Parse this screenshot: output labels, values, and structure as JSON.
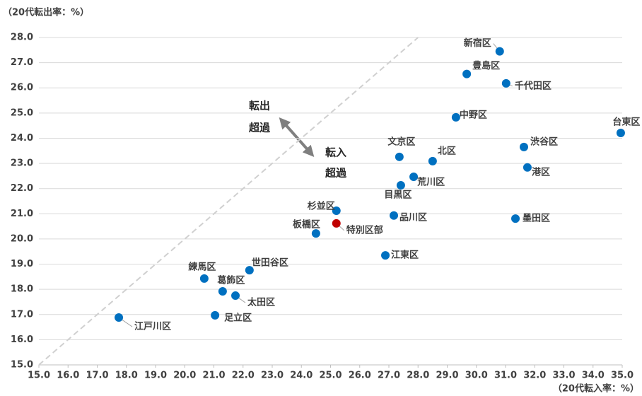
{
  "chart_data": {
    "type": "scatter",
    "y_label": "（20代転出率：%）",
    "x_label": "（20代転入率：%）",
    "annotations": [
      "転出",
      "超過",
      "転入",
      "超過"
    ],
    "labels": [
      "新宿区",
      "豊島区",
      "千代田区",
      "中野区",
      "台東区",
      "渋谷区",
      "文京区",
      "北区",
      "港区",
      "荒川区",
      "目黒区",
      "杉並区",
      "品川区",
      "墨田区",
      "特別区部",
      "板橋区",
      "江東区",
      "世田谷区",
      "練馬区",
      "葛飾区",
      "太田区",
      "足立区",
      "江戸川区"
    ],
    "x": [
      30.8,
      29.67,
      31.02,
      29.3,
      34.95,
      31.63,
      27.36,
      28.5,
      31.75,
      27.85,
      27.41,
      25.2,
      27.17,
      31.34,
      25.2,
      24.5,
      26.88,
      22.22,
      20.67,
      21.3,
      21.74,
      21.04,
      17.74
    ],
    "y": [
      27.45,
      26.55,
      26.18,
      24.83,
      24.21,
      23.65,
      23.26,
      23.09,
      22.84,
      22.47,
      22.13,
      21.12,
      20.93,
      20.81,
      20.62,
      20.22,
      19.35,
      18.76,
      18.43,
      17.92,
      17.75,
      16.97,
      16.88
    ],
    "colors": [
      "#0070c0",
      "#0070c0",
      "#0070c0",
      "#0070c0",
      "#0070c0",
      "#0070c0",
      "#0070c0",
      "#0070c0",
      "#0070c0",
      "#0070c0",
      "#0070c0",
      "#0070c0",
      "#0070c0",
      "#0070c0",
      "#c00000",
      "#0070c0",
      "#0070c0",
      "#0070c0",
      "#0070c0",
      "#0070c0",
      "#0070c0",
      "#0070c0",
      "#0070c0"
    ],
    "xlim": [
      15,
      35
    ],
    "ylim": [
      15,
      28
    ],
    "xticks": [
      {
        "value": 15,
        "label": "15.0"
      },
      {
        "value": 16,
        "label": "16.0"
      },
      {
        "value": 17,
        "label": "17.0"
      },
      {
        "value": 18,
        "label": "18.0"
      },
      {
        "value": 19,
        "label": "19.0"
      },
      {
        "value": 20,
        "label": "20.0"
      },
      {
        "value": 21,
        "label": "21.0"
      },
      {
        "value": 22,
        "label": "22.0"
      },
      {
        "value": 23,
        "label": "23.0"
      },
      {
        "value": 24,
        "label": "24.0"
      },
      {
        "value": 25,
        "label": "25.0"
      },
      {
        "value": 26,
        "label": "26.0"
      },
      {
        "value": 27,
        "label": "27.0"
      },
      {
        "value": 28,
        "label": "28.0"
      },
      {
        "value": 29,
        "label": "29.0"
      },
      {
        "value": 30,
        "label": "30.0"
      },
      {
        "value": 31,
        "label": "31.0"
      },
      {
        "value": 32,
        "label": "32.0"
      },
      {
        "value": 33,
        "label": "33.0"
      },
      {
        "value": 34,
        "label": "34.0"
      },
      {
        "value": 35,
        "label": "35.0"
      }
    ],
    "yticks": [
      {
        "value": 15,
        "label": "15.0"
      },
      {
        "value": 16,
        "label": "16.0"
      },
      {
        "value": 17,
        "label": "17.0"
      },
      {
        "value": 18,
        "label": "18.0"
      },
      {
        "value": 19,
        "label": "19.0"
      },
      {
        "value": 20,
        "label": "20.0"
      },
      {
        "value": 21,
        "label": "21.0"
      },
      {
        "value": 22,
        "label": "22.0"
      },
      {
        "value": 23,
        "label": "23.0"
      },
      {
        "value": 24,
        "label": "24.0"
      },
      {
        "value": 25,
        "label": "25.0"
      },
      {
        "value": 26,
        "label": "26.0"
      },
      {
        "value": 27,
        "label": "27.0"
      },
      {
        "value": 28,
        "label": "28.0"
      }
    ],
    "grid": true
  }
}
